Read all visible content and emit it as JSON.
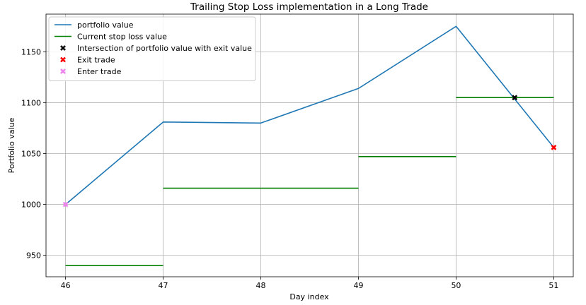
{
  "chart_data": {
    "type": "line",
    "title": "Trailing Stop Loss implementation in a Long Trade",
    "xlabel": "Day index",
    "ylabel": "Portfolio value",
    "xlim": [
      45.8,
      51.2
    ],
    "ylim": [
      929,
      1187
    ],
    "xticks": [
      46,
      47,
      48,
      49,
      50,
      51
    ],
    "yticks": [
      950,
      1000,
      1050,
      1100,
      1150
    ],
    "grid": true,
    "legend_position": "upper-left",
    "series": [
      {
        "name": "portfolio value",
        "kind": "line",
        "color": "#1f77b4",
        "points": [
          [
            46,
            1000
          ],
          [
            47,
            1081
          ],
          [
            48,
            1080
          ],
          [
            49,
            1114
          ],
          [
            50,
            1175
          ],
          [
            51,
            1056
          ]
        ]
      },
      {
        "name": "Current stop loss value",
        "kind": "steps",
        "color": "#008000",
        "segments": [
          {
            "x": [
              46,
              47
            ],
            "y": 940
          },
          {
            "x": [
              47,
              49
            ],
            "y": 1016
          },
          {
            "x": [
              49,
              50
            ],
            "y": 1047
          },
          {
            "x": [
              50,
              51
            ],
            "y": 1105
          }
        ]
      },
      {
        "name": "Intersection of portfolio value with exit value",
        "kind": "marker",
        "color": "#000000",
        "points": [
          [
            50.6,
            1105
          ]
        ]
      },
      {
        "name": "Exit trade",
        "kind": "marker",
        "color": "#ff0000",
        "points": [
          [
            51,
            1056
          ]
        ]
      },
      {
        "name": "Enter trade",
        "kind": "marker",
        "color": "#ee82ee",
        "points": [
          [
            46,
            1000
          ]
        ]
      }
    ]
  }
}
